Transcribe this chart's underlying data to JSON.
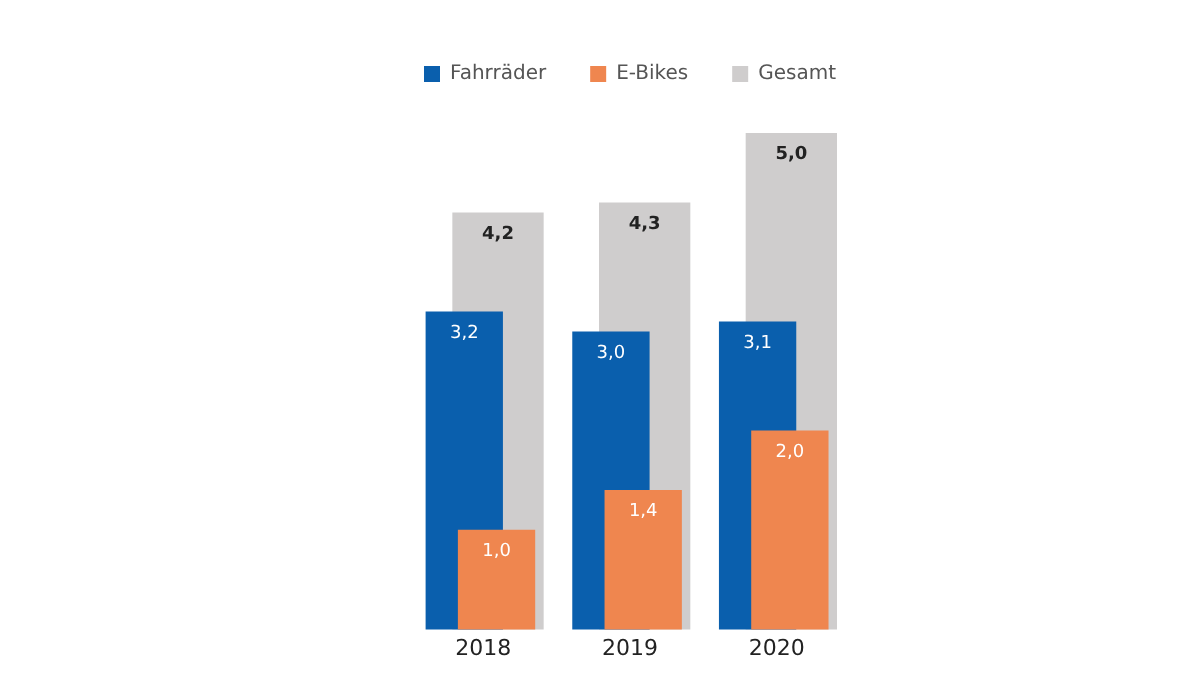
{
  "chart_data": {
    "type": "bar",
    "categories": [
      "2018",
      "2019",
      "2020"
    ],
    "series": [
      {
        "name": "Fahrräder",
        "color": "#0a5fad",
        "values": [
          3.2,
          3.0,
          3.1
        ],
        "value_labels": [
          "3,2",
          "3,0",
          "3,1"
        ]
      },
      {
        "name": "E-Bikes",
        "color": "#ef864f",
        "values": [
          1.0,
          1.4,
          2.0
        ],
        "value_labels": [
          "1,0",
          "1,4",
          "2,0"
        ]
      },
      {
        "name": "Gesamt",
        "color": "#cfcdcd",
        "values": [
          4.2,
          4.3,
          5.0
        ],
        "value_labels": [
          "4,2",
          "4,3",
          "5,0"
        ]
      }
    ],
    "legend": "top",
    "grid": false,
    "tick_labels": "x"
  }
}
